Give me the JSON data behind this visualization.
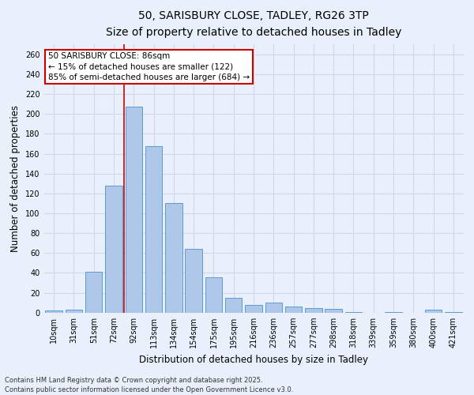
{
  "title_line1": "50, SARISBURY CLOSE, TADLEY, RG26 3TP",
  "title_line2": "Size of property relative to detached houses in Tadley",
  "xlabel": "Distribution of detached houses by size in Tadley",
  "ylabel": "Number of detached properties",
  "categories": [
    "10sqm",
    "31sqm",
    "51sqm",
    "72sqm",
    "92sqm",
    "113sqm",
    "134sqm",
    "154sqm",
    "175sqm",
    "195sqm",
    "216sqm",
    "236sqm",
    "257sqm",
    "277sqm",
    "298sqm",
    "318sqm",
    "339sqm",
    "359sqm",
    "380sqm",
    "400sqm",
    "421sqm"
  ],
  "values": [
    2,
    3,
    41,
    128,
    207,
    168,
    110,
    64,
    36,
    15,
    8,
    10,
    6,
    5,
    4,
    1,
    0,
    1,
    0,
    3,
    1
  ],
  "bar_color": "#aec6e8",
  "bar_edge_color": "#5b9bd5",
  "grid_color": "#d0d8e8",
  "bg_color": "#eaf0fb",
  "vline_color": "#cc0000",
  "vline_x_index": 3,
  "annotation_line1": "50 SARISBURY CLOSE: 86sqm",
  "annotation_line2": "← 15% of detached houses are smaller (122)",
  "annotation_line3": "85% of semi-detached houses are larger (684) →",
  "annotation_box_color": "#ffffff",
  "annotation_box_edge": "#cc0000",
  "ylim": [
    0,
    270
  ],
  "yticks": [
    0,
    20,
    40,
    60,
    80,
    100,
    120,
    140,
    160,
    180,
    200,
    220,
    240,
    260
  ],
  "footer_line1": "Contains HM Land Registry data © Crown copyright and database right 2025.",
  "footer_line2": "Contains public sector information licensed under the Open Government Licence v3.0.",
  "title_fontsize": 10,
  "subtitle_fontsize": 9,
  "tick_fontsize": 7,
  "label_fontsize": 8.5,
  "annotation_fontsize": 7.5,
  "footer_fontsize": 6
}
